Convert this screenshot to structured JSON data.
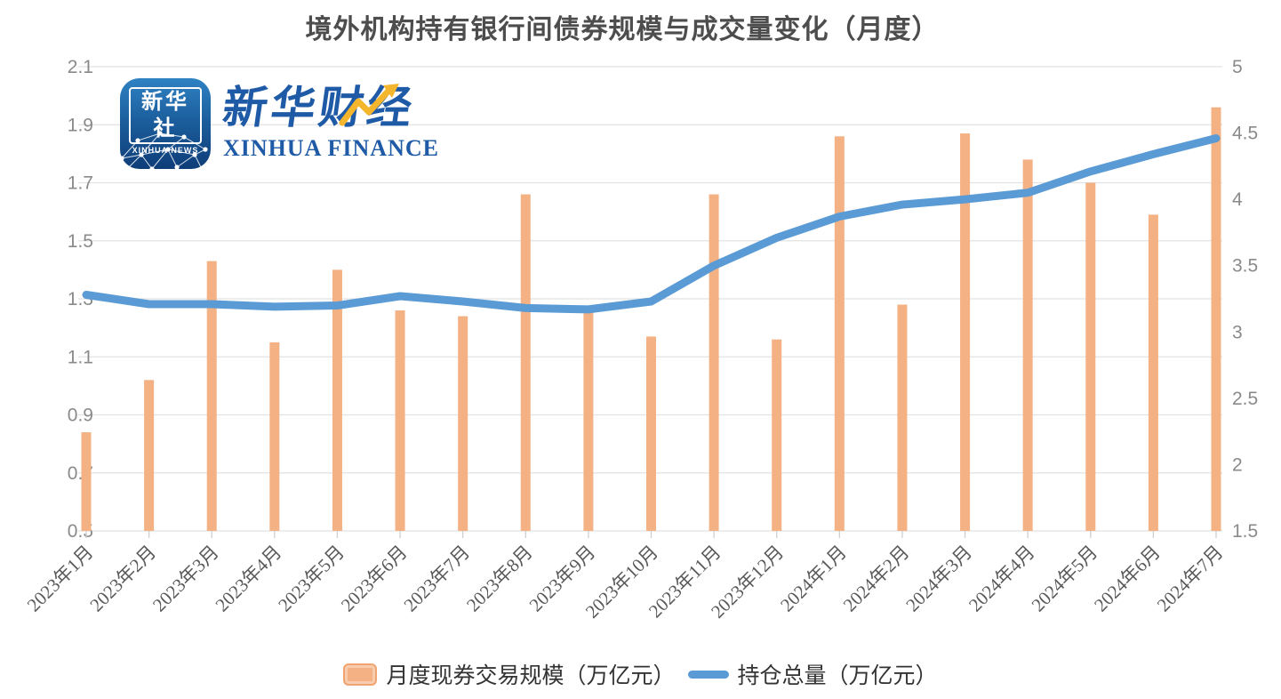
{
  "title": "境外机构持有银行间债券规模与成交量变化（月度）",
  "logo": {
    "icon_title": "新华社",
    "icon_subtitle": "XINHUA NEWS",
    "brand_cn": "新华财经",
    "brand_en": "XINHUA FINANCE"
  },
  "colors": {
    "bar": "#f4b183",
    "line": "#5b9bd5",
    "grid": "#e2e2e2",
    "axis_tick": "#cfcfcf",
    "y_axis_text": "#8a8a8a",
    "x_axis_text": "#595959",
    "logo_blue": "#1e5aa6",
    "logo_gold": "#f3b62c"
  },
  "chart_data": {
    "type": "bar+line",
    "title": "境外机构持有银行间债券规模与成交量变化（月度）",
    "categories": [
      "2023年1月",
      "2023年2月",
      "2023年3月",
      "2023年4月",
      "2023年5月",
      "2023年6月",
      "2023年7月",
      "2023年8月",
      "2023年9月",
      "2023年10月",
      "2023年11月",
      "2023年12月",
      "2024年1月",
      "2024年2月",
      "2024年3月",
      "2024年4月",
      "2024年5月",
      "2024年6月",
      "2024年7月"
    ],
    "series": [
      {
        "name": "月度现券交易规模（万亿元）",
        "type": "bar",
        "axis": "left",
        "values": [
          0.84,
          1.02,
          1.43,
          1.15,
          1.4,
          1.26,
          1.24,
          1.66,
          1.26,
          1.17,
          1.66,
          1.16,
          1.86,
          1.28,
          1.87,
          1.78,
          1.7,
          1.59,
          1.96
        ]
      },
      {
        "name": "持仓总量（万亿元）",
        "type": "line",
        "axis": "right",
        "values": [
          3.28,
          3.21,
          3.21,
          3.19,
          3.2,
          3.27,
          3.23,
          3.18,
          3.17,
          3.23,
          3.5,
          3.71,
          3.87,
          3.96,
          4.0,
          4.05,
          4.21,
          4.34,
          4.46
        ]
      }
    ],
    "left_axis": {
      "min": 0.5,
      "max": 2.1,
      "step": 0.2,
      "ticks": [
        "2.1",
        "1.9",
        "1.7",
        "1.5",
        "1.3",
        "1.1",
        "0.9",
        "0.7",
        "0.5"
      ]
    },
    "right_axis": {
      "min": 1.5,
      "max": 5.0,
      "step": 0.5,
      "ticks": [
        "5",
        "4.5",
        "4",
        "3.5",
        "3",
        "2.5",
        "2",
        "1.5"
      ]
    },
    "grid": true,
    "legend_position": "bottom"
  }
}
